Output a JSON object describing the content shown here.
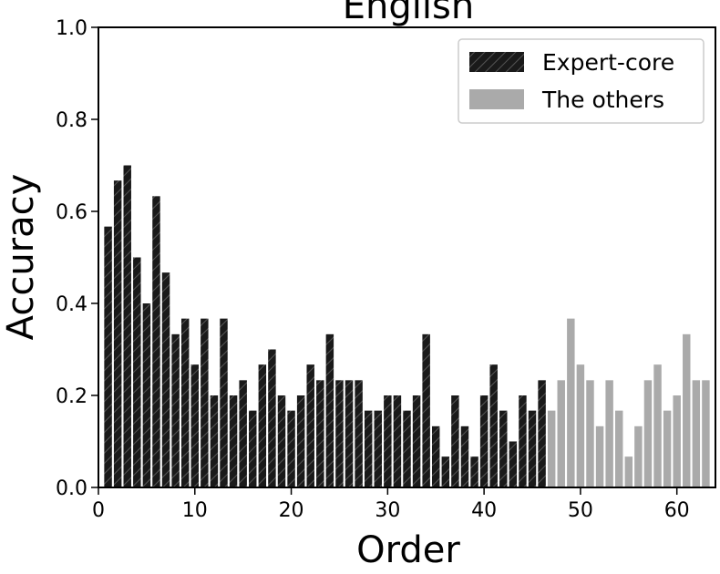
{
  "chart_data": {
    "type": "bar",
    "title": "English",
    "xlabel": "Order",
    "ylabel": "Accuracy",
    "xlim": [
      0,
      64
    ],
    "ylim": [
      0,
      1.0
    ],
    "xticks": [
      "0",
      "10",
      "20",
      "30",
      "40",
      "50",
      "60"
    ],
    "yticks": [
      "0.0",
      "0.2",
      "0.4",
      "0.6",
      "0.8",
      "1.0"
    ],
    "grid": false,
    "legend_position": "top-right",
    "series": [
      {
        "name": "Expert-core",
        "color": "#1a1a1a",
        "hatch": "diagonal",
        "x": [
          1,
          2,
          3,
          4,
          5,
          6,
          7,
          8,
          9,
          10,
          11,
          12,
          13,
          14,
          15,
          16,
          17,
          18,
          19,
          20,
          21,
          22,
          23,
          24,
          25,
          26,
          27,
          28,
          29,
          30,
          31,
          32,
          33,
          34,
          35,
          36,
          37,
          38,
          39,
          40,
          41,
          42,
          43,
          44,
          45,
          46
        ],
        "values": [
          0.567,
          0.667,
          0.7,
          0.5,
          0.4,
          0.633,
          0.467,
          0.333,
          0.367,
          0.267,
          0.367,
          0.2,
          0.367,
          0.2,
          0.233,
          0.167,
          0.267,
          0.3,
          0.2,
          0.167,
          0.2,
          0.267,
          0.233,
          0.333,
          0.233,
          0.233,
          0.233,
          0.167,
          0.167,
          0.2,
          0.2,
          0.167,
          0.2,
          0.333,
          0.133,
          0.067,
          0.2,
          0.133,
          0.067,
          0.2,
          0.267,
          0.167,
          0.1,
          0.2,
          0.167,
          0.233
        ]
      },
      {
        "name": "The others",
        "color": "#aaaaaa",
        "hatch": "none",
        "x": [
          47,
          48,
          49,
          50,
          51,
          52,
          53,
          54,
          55,
          56,
          57,
          58,
          59,
          60,
          61,
          62,
          63
        ],
        "values": [
          0.167,
          0.233,
          0.367,
          0.267,
          0.233,
          0.133,
          0.233,
          0.167,
          0.067,
          0.133,
          0.233,
          0.267,
          0.167,
          0.2,
          0.333,
          0.233,
          0.233
        ]
      }
    ]
  }
}
